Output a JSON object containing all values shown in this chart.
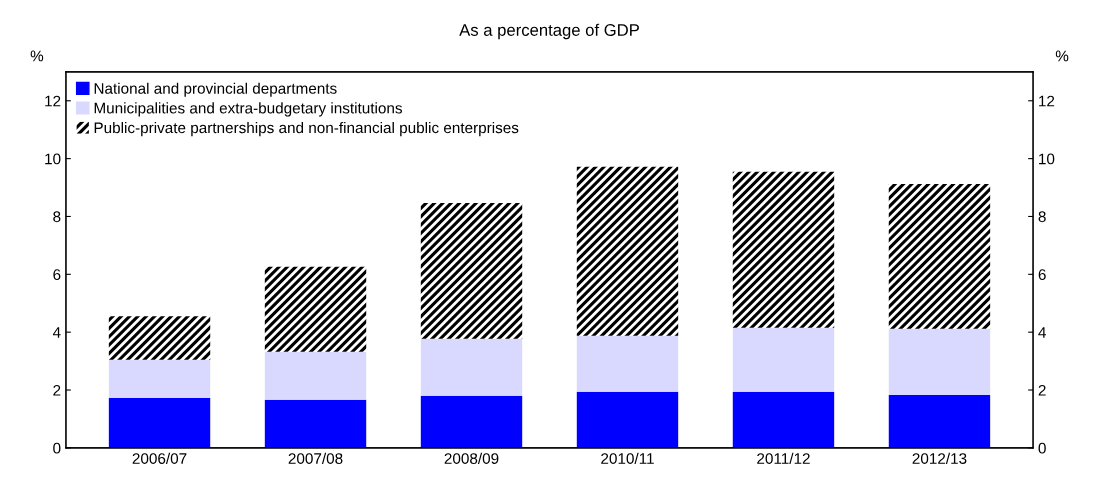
{
  "chart_data": {
    "type": "bar",
    "title": "As a percentage of GDP",
    "ylabel": "%",
    "y2label": "%",
    "categories": [
      "2006/07",
      "2007/08",
      "2008/09",
      "2010/11",
      "2011/12",
      "2012/13"
    ],
    "stacked": true,
    "series": [
      {
        "name": "National and provincial departments",
        "color": "#0000ff",
        "values": [
          1.72,
          1.66,
          1.8,
          1.94,
          1.94,
          1.83
        ]
      },
      {
        "name": "Municipalities and extra-budgetary institutions",
        "color": "#d9d9ff",
        "values": [
          1.33,
          1.66,
          1.97,
          1.94,
          2.21,
          2.29
        ]
      },
      {
        "name": "Public-private partnerships and non-financial public enterprises",
        "color": "#000000",
        "values": [
          1.5,
          2.94,
          4.7,
          5.84,
          5.4,
          5.0
        ]
      }
    ],
    "ylim": [
      0,
      13
    ],
    "yticks": [
      0,
      2,
      4,
      6,
      8,
      10,
      12
    ],
    "y2lim": [
      0,
      13
    ],
    "y2ticks": [
      0,
      2,
      4,
      6,
      8,
      10,
      12
    ],
    "grid": false,
    "legend": "top left"
  }
}
